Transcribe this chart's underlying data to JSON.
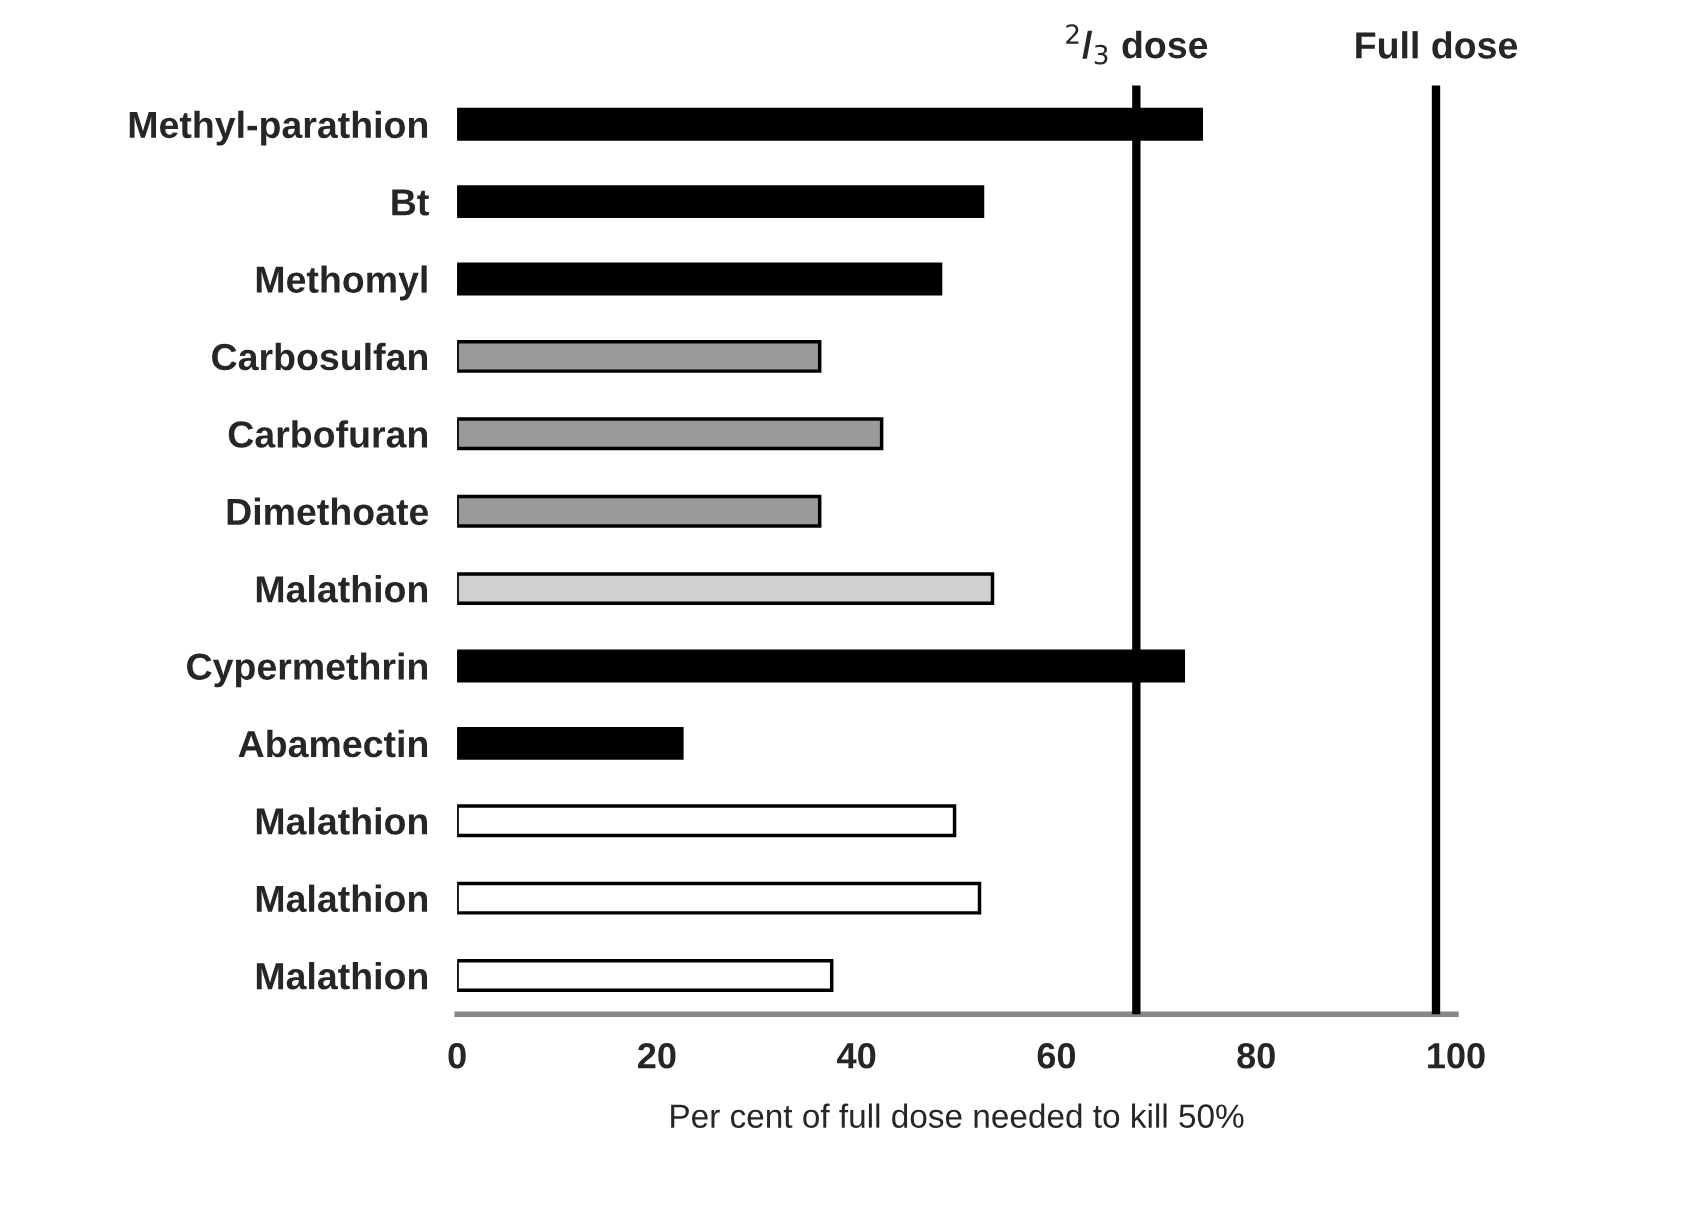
{
  "chart_data": {
    "type": "bar",
    "orientation": "horizontal",
    "xlabel": "Per cent of full dose needed to kill 50%",
    "categories": [
      "Methyl-parathion",
      "Bt",
      "Methomyl",
      "Carbosulfan",
      "Carbofuran",
      "Dimethoate",
      "Malathion",
      "Cypermethrin",
      "Abamectin",
      "Malathion",
      "Malathion",
      "Malathion"
    ],
    "values": [
      74.5,
      52.6,
      48.4,
      36.3,
      42.5,
      36.3,
      53.6,
      72.7,
      22.5,
      49.8,
      52.3,
      37.5
    ],
    "colors": [
      "#000000",
      "#000000",
      "#000000",
      "#9a9a9a",
      "#9a9a9a",
      "#9a9a9a",
      "#d0d0d0",
      "#000000",
      "#000000",
      "#ffffff",
      "#ffffff",
      "#ffffff"
    ],
    "xlim": [
      0,
      100
    ],
    "xticks": [
      0,
      20,
      40,
      60,
      80,
      100
    ],
    "ref_lines": [
      {
        "axis": "x",
        "value": 68,
        "label": "$^{2}$/$_{3}$ dose",
        "color": "#000000"
      },
      {
        "axis": "x",
        "value": 98,
        "label": "Full dose",
        "color": "#000000"
      }
    ],
    "grid": false,
    "legend": false
  }
}
